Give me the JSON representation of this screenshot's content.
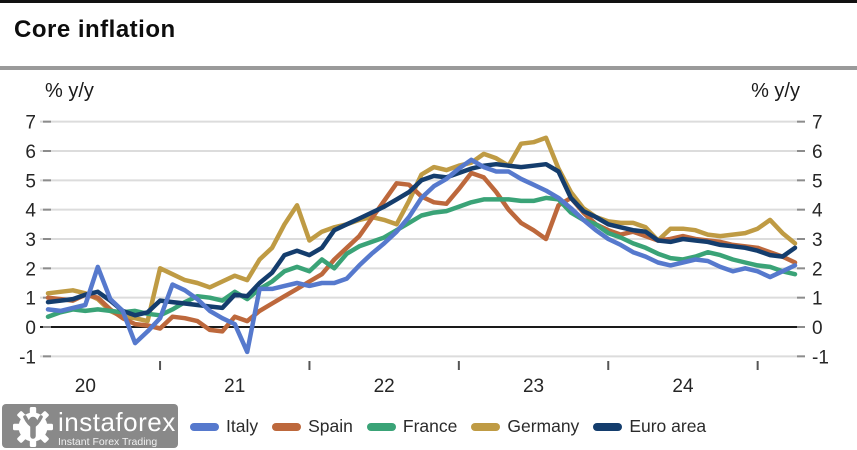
{
  "header": {
    "title": "Core inflation"
  },
  "axis": {
    "left_unit": "% y/y",
    "right_unit": "% y/y"
  },
  "legend": {
    "items": [
      {
        "label": "Italy",
        "color": "#5679cd"
      },
      {
        "label": "Spain",
        "color": "#bd683c"
      },
      {
        "label": "France",
        "color": "#3aa377"
      },
      {
        "label": "Germany",
        "color": "#bf9b44"
      },
      {
        "label": "Euro area",
        "color": "#143d6d"
      }
    ]
  },
  "logo": {
    "name": "instaforex",
    "tagline": "Instant Forex Trading",
    "background": "#898989"
  },
  "chart_data": {
    "type": "line",
    "title": "Core inflation",
    "ylabel": "% y/y",
    "ylim": [
      -1,
      7
    ],
    "yticks": [
      7,
      6,
      5,
      4,
      3,
      2,
      1,
      0,
      -1
    ],
    "grid": "horizontal",
    "legend_position": "bottom",
    "colors": {
      "grid": "#dcdcdc",
      "zero_line": "#1a1a1a",
      "tick": "#8c8c8c",
      "tick_text": "#262626"
    },
    "x_axis": {
      "year_labels": [
        {
          "label": "20",
          "month_index": 3
        },
        {
          "label": "21",
          "month_index": 15
        },
        {
          "label": "22",
          "month_index": 27
        },
        {
          "label": "23",
          "month_index": 39
        },
        {
          "label": "24",
          "month_index": 51
        }
      ],
      "midyear_tick_month_indices": [
        9,
        21,
        33,
        45,
        57
      ]
    },
    "months": [
      "2019-10",
      "2019-11",
      "2019-12",
      "2020-01",
      "2020-02",
      "2020-03",
      "2020-04",
      "2020-05",
      "2020-06",
      "2020-07",
      "2020-08",
      "2020-09",
      "2020-10",
      "2020-11",
      "2020-12",
      "2021-01",
      "2021-02",
      "2021-03",
      "2021-04",
      "2021-05",
      "2021-06",
      "2021-07",
      "2021-08",
      "2021-09",
      "2021-10",
      "2021-11",
      "2021-12",
      "2022-01",
      "2022-02",
      "2022-03",
      "2022-04",
      "2022-05",
      "2022-06",
      "2022-07",
      "2022-08",
      "2022-09",
      "2022-10",
      "2022-11",
      "2022-12",
      "2023-01",
      "2023-02",
      "2023-03",
      "2023-04",
      "2023-05",
      "2023-06",
      "2023-07",
      "2023-08",
      "2023-09",
      "2023-10",
      "2023-11",
      "2023-12",
      "2024-01",
      "2024-02",
      "2024-03",
      "2024-04",
      "2024-05",
      "2024-06",
      "2024-07",
      "2024-08",
      "2024-09",
      "2024-10"
    ],
    "draw_order": [
      3,
      1,
      2,
      4,
      0
    ],
    "series": [
      {
        "name": "Italy",
        "color": "#5679cd",
        "values": [
          0.6,
          0.55,
          0.65,
          0.75,
          2.05,
          0.95,
          0.55,
          -0.55,
          -0.15,
          0.3,
          1.45,
          1.25,
          0.95,
          0.55,
          0.3,
          0.1,
          -0.85,
          1.3,
          1.3,
          1.4,
          1.5,
          1.4,
          1.5,
          1.5,
          1.65,
          2.1,
          2.5,
          2.85,
          3.25,
          3.75,
          4.4,
          4.8,
          5.05,
          5.4,
          5.7,
          5.45,
          5.3,
          5.3,
          5.05,
          4.85,
          4.65,
          4.4,
          4.05,
          3.65,
          3.3,
          3.0,
          2.8,
          2.55,
          2.4,
          2.2,
          2.1,
          2.2,
          2.3,
          2.25,
          2.05,
          1.9,
          2.0,
          1.9,
          1.7,
          1.9,
          2.1
        ]
      },
      {
        "name": "Spain",
        "color": "#bd683c",
        "values": [
          1.0,
          0.95,
          0.9,
          1.1,
          1.0,
          0.6,
          0.3,
          0.1,
          0.05,
          -0.05,
          0.35,
          0.3,
          0.2,
          -0.1,
          -0.15,
          0.35,
          0.2,
          0.55,
          0.8,
          1.05,
          1.3,
          1.55,
          1.8,
          2.3,
          2.7,
          3.1,
          3.7,
          4.3,
          4.9,
          4.85,
          4.45,
          4.25,
          4.2,
          4.7,
          5.25,
          5.1,
          4.6,
          4.0,
          3.55,
          3.3,
          3.0,
          4.15,
          4.4,
          3.9,
          3.5,
          3.3,
          3.15,
          3.25,
          3.1,
          2.95,
          3.0,
          3.1,
          3.0,
          2.95,
          2.9,
          2.8,
          2.75,
          2.7,
          2.55,
          2.4,
          2.2
        ]
      },
      {
        "name": "France",
        "color": "#3aa377",
        "values": [
          0.35,
          0.5,
          0.6,
          0.55,
          0.6,
          0.55,
          0.5,
          0.55,
          0.45,
          0.4,
          0.6,
          0.85,
          1.05,
          1.0,
          0.9,
          1.2,
          0.95,
          1.3,
          1.55,
          1.9,
          2.05,
          1.9,
          2.3,
          2.0,
          2.5,
          2.75,
          2.9,
          3.05,
          3.3,
          3.55,
          3.8,
          3.9,
          3.95,
          4.1,
          4.25,
          4.35,
          4.35,
          4.35,
          4.3,
          4.3,
          4.4,
          4.35,
          3.9,
          3.65,
          3.5,
          3.2,
          3.05,
          2.85,
          2.7,
          2.5,
          2.35,
          2.3,
          2.4,
          2.55,
          2.45,
          2.3,
          2.2,
          2.1,
          2.05,
          1.9,
          1.8
        ]
      },
      {
        "name": "Germany",
        "color": "#bf9b44",
        "values": [
          1.15,
          1.2,
          1.25,
          1.15,
          0.95,
          0.55,
          0.35,
          0.3,
          0.2,
          2.0,
          1.8,
          1.6,
          1.5,
          1.35,
          1.55,
          1.75,
          1.6,
          2.3,
          2.7,
          3.5,
          4.15,
          2.95,
          3.25,
          3.4,
          3.5,
          3.65,
          3.75,
          3.65,
          3.5,
          4.3,
          5.2,
          5.45,
          5.35,
          5.5,
          5.6,
          5.9,
          5.75,
          5.5,
          6.25,
          6.3,
          6.45,
          5.4,
          4.6,
          4.05,
          3.75,
          3.6,
          3.55,
          3.55,
          3.4,
          2.95,
          3.35,
          3.35,
          3.3,
          3.15,
          3.1,
          3.15,
          3.2,
          3.35,
          3.65,
          3.2,
          2.85
        ]
      },
      {
        "name": "Euro area",
        "color": "#143d6d",
        "values": [
          0.85,
          0.9,
          0.95,
          1.1,
          1.2,
          0.9,
          0.55,
          0.4,
          0.5,
          0.9,
          0.85,
          0.8,
          0.75,
          0.7,
          0.65,
          1.1,
          1.05,
          1.5,
          1.85,
          2.45,
          2.6,
          2.45,
          2.7,
          3.3,
          3.5,
          3.7,
          3.9,
          4.1,
          4.35,
          4.6,
          5.0,
          5.15,
          5.1,
          5.25,
          5.4,
          5.5,
          5.55,
          5.5,
          5.45,
          5.5,
          5.55,
          5.3,
          4.4,
          3.95,
          3.75,
          3.5,
          3.4,
          3.3,
          3.25,
          2.95,
          2.9,
          3.0,
          2.95,
          2.9,
          2.8,
          2.75,
          2.7,
          2.6,
          2.45,
          2.4,
          2.7
        ]
      }
    ]
  }
}
